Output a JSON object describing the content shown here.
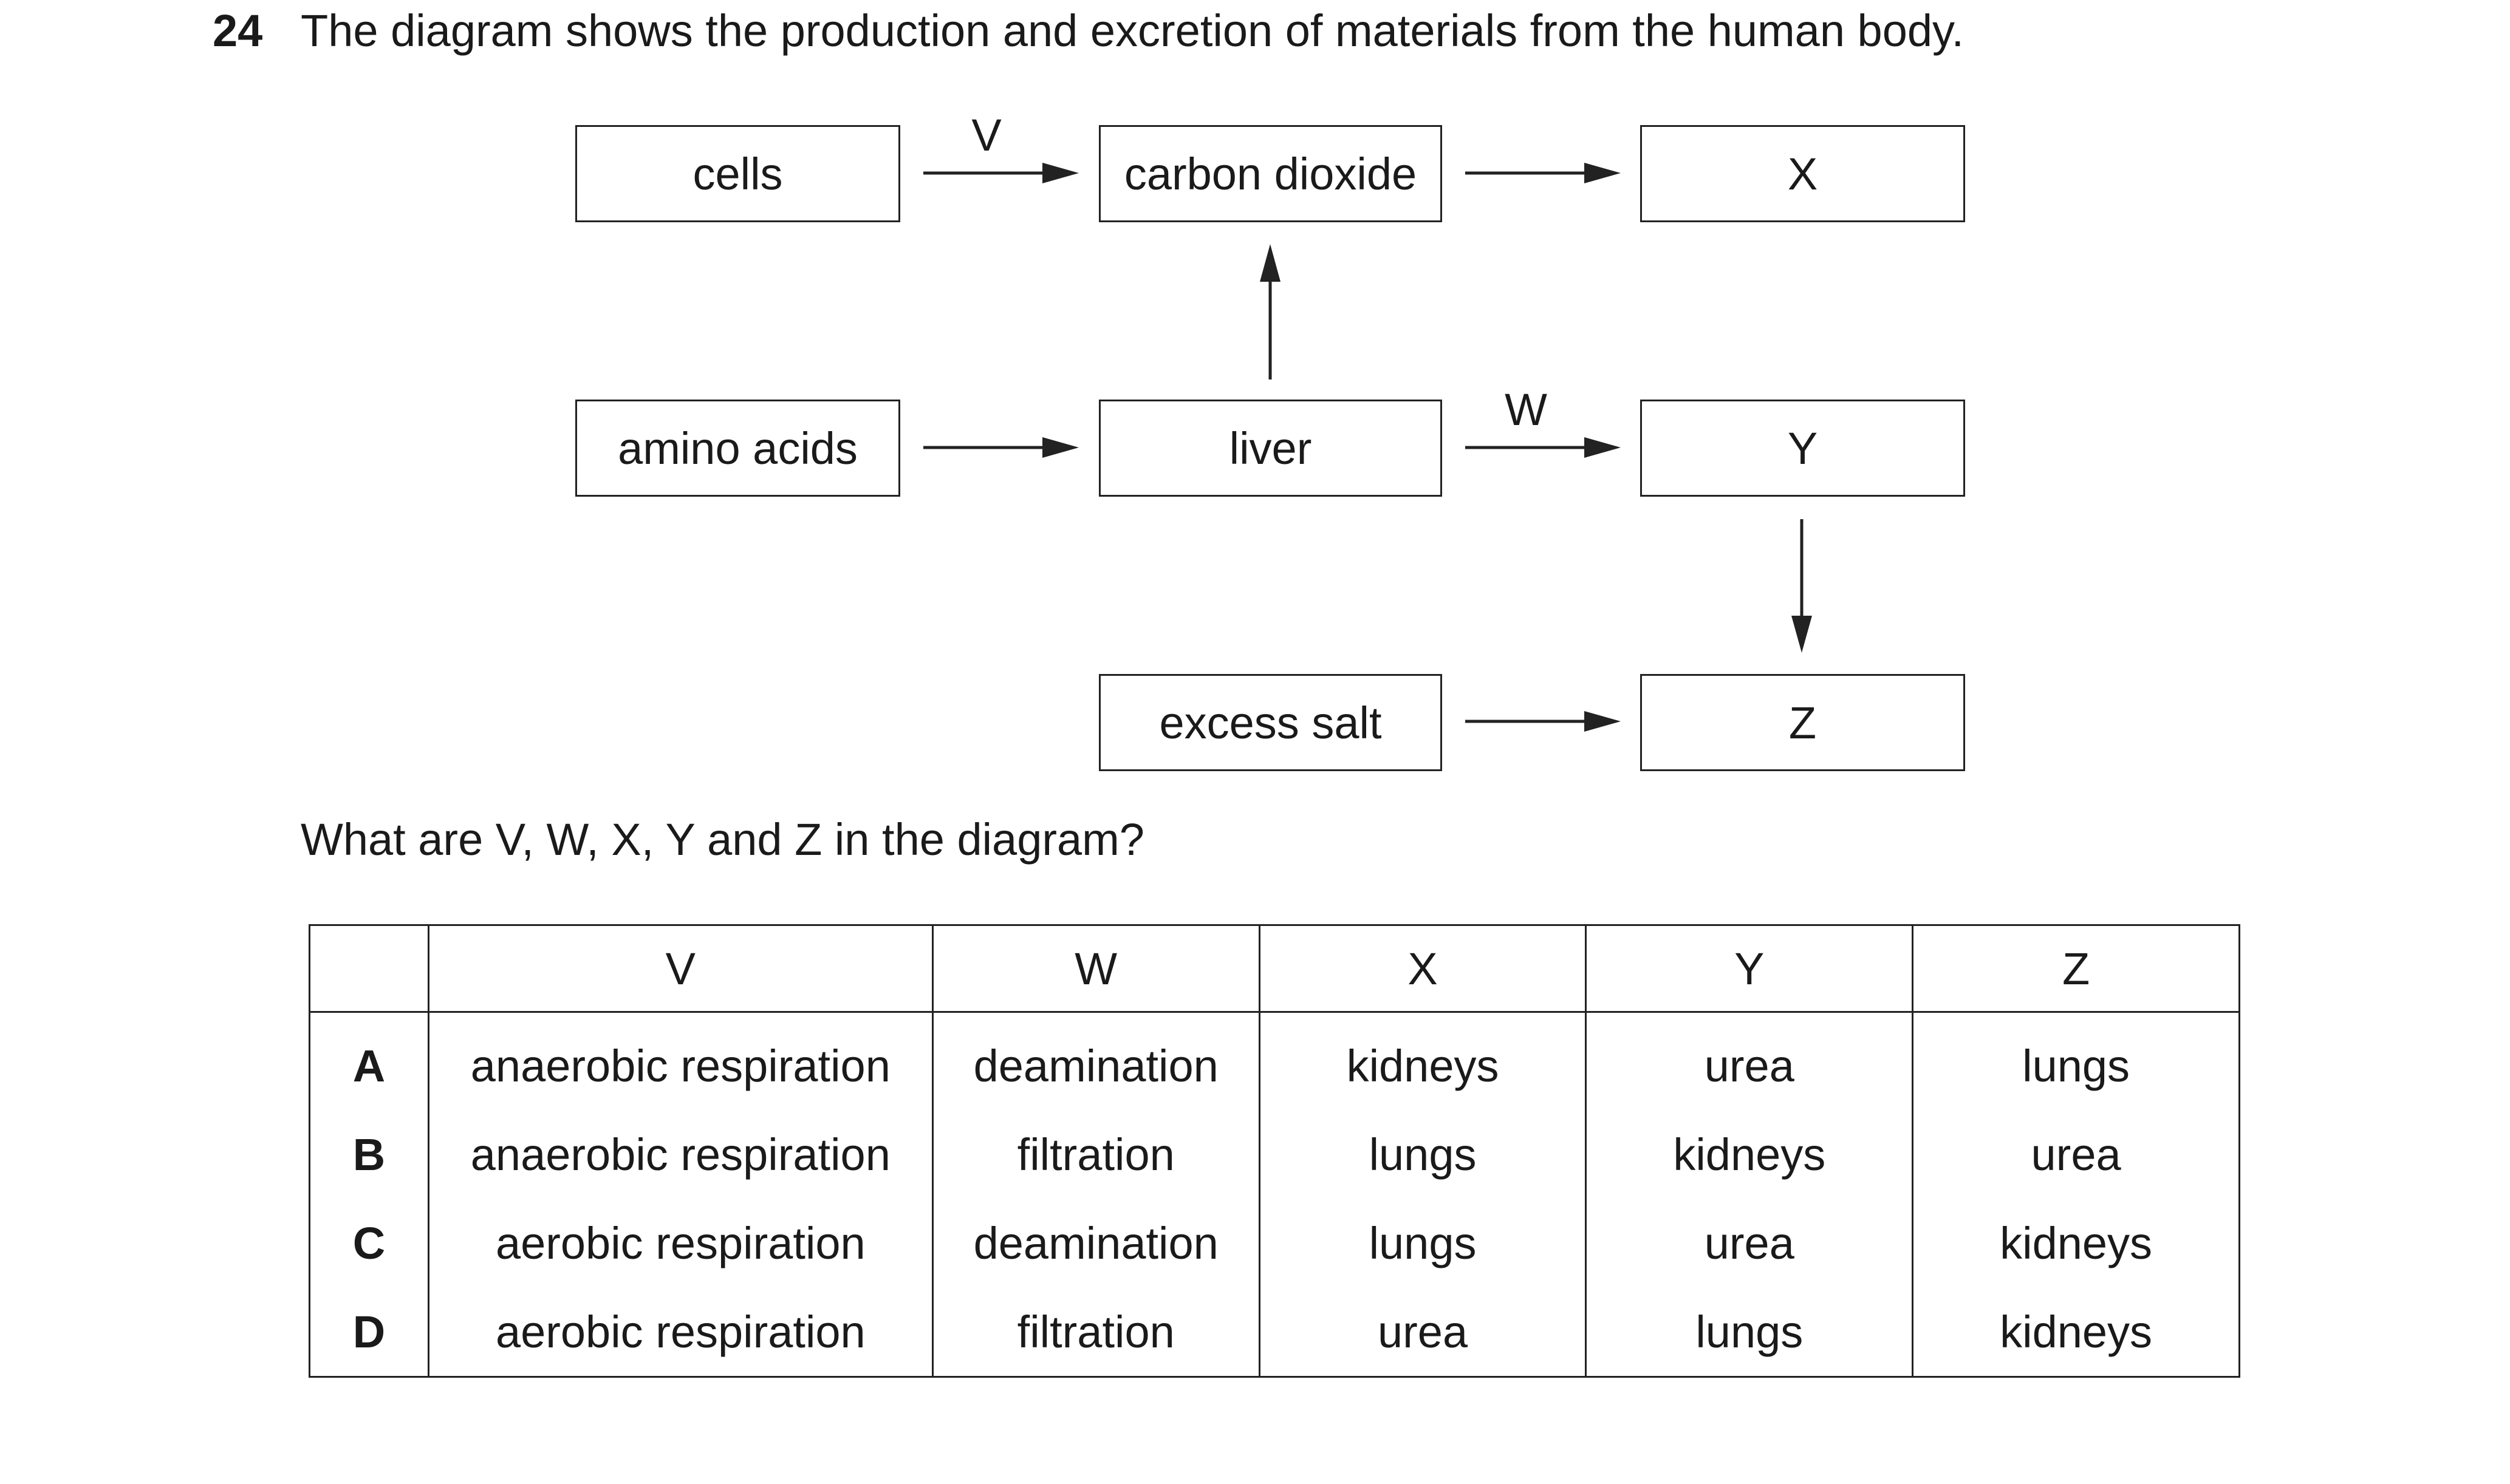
{
  "question": {
    "number": "24",
    "stem": "The diagram shows the production and excretion of materials from the human body.",
    "prompt": "What are V, W, X, Y and Z in the diagram?"
  },
  "diagram": {
    "boxes": {
      "cells": "cells",
      "carbon_dioxide": "carbon dioxide",
      "x": "X",
      "amino_acids": "amino acids",
      "liver": "liver",
      "y": "Y",
      "excess_salt": "excess salt",
      "z": "Z"
    },
    "arrow_labels": {
      "v": "V",
      "w": "W"
    }
  },
  "table": {
    "headers": [
      "",
      "V",
      "W",
      "X",
      "Y",
      "Z"
    ],
    "rows": [
      [
        "A",
        "anaerobic respiration",
        "deamination",
        "kidneys",
        "urea",
        "lungs"
      ],
      [
        "B",
        "anaerobic respiration",
        "filtration",
        "lungs",
        "kidneys",
        "urea"
      ],
      [
        "C",
        "aerobic respiration",
        "deamination",
        "lungs",
        "urea",
        "kidneys"
      ],
      [
        "D",
        "aerobic respiration",
        "filtration",
        "urea",
        "lungs",
        "kidneys"
      ]
    ]
  }
}
